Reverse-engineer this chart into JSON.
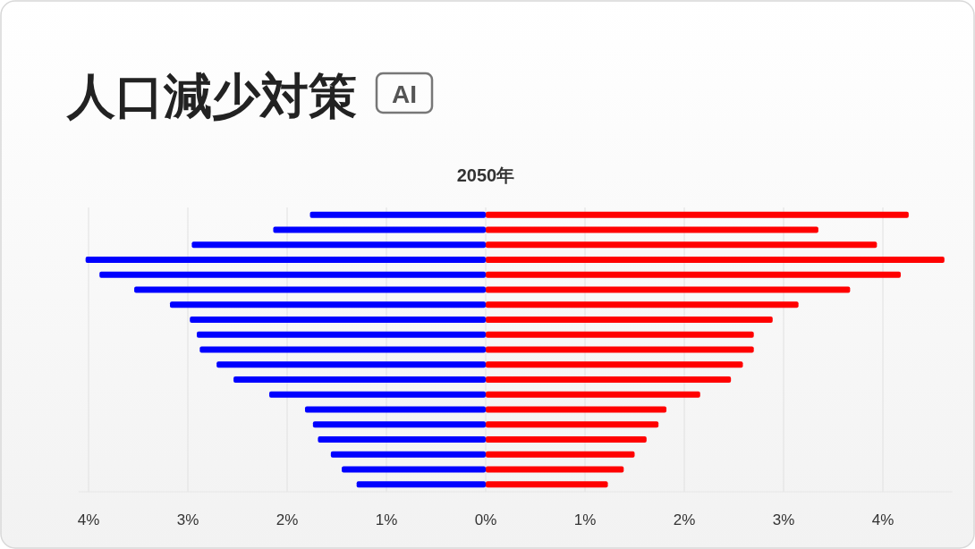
{
  "chart_data": {
    "type": "bar",
    "orientation": "horizontal",
    "stacked": true,
    "title": "人口減少対策",
    "subtitle": "2050年",
    "annotations": [
      "AI"
    ],
    "categories": [
      null,
      null,
      null,
      null,
      null,
      null,
      null,
      null,
      null,
      null,
      null,
      null,
      null,
      null,
      null,
      null,
      null,
      null,
      null
    ],
    "series": [
      {
        "color": "#0000ff",
        "values": [
          -1.77,
          -2.14,
          -2.96,
          -4.03,
          -3.89,
          -3.54,
          -3.18,
          -2.98,
          -2.91,
          -2.88,
          -2.71,
          -2.54,
          -2.18,
          -1.82,
          -1.74,
          -1.69,
          -1.56,
          -1.45,
          -1.3
        ]
      },
      {
        "color": "#ff0000",
        "values": [
          4.26,
          3.35,
          3.94,
          4.62,
          4.18,
          3.67,
          3.15,
          2.89,
          2.7,
          2.7,
          2.59,
          2.47,
          2.16,
          1.82,
          1.74,
          1.62,
          1.5,
          1.39,
          1.23
        ]
      }
    ],
    "xlim": [
      -4.1,
      4.7
    ],
    "xticks": [
      {
        "value": -4,
        "label": "4%"
      },
      {
        "value": -3,
        "label": "3%"
      },
      {
        "value": -2,
        "label": "2%"
      },
      {
        "value": -1,
        "label": "1%"
      },
      {
        "value": 0,
        "label": "0%"
      },
      {
        "value": 1,
        "label": "1%"
      },
      {
        "value": 2,
        "label": "2%"
      },
      {
        "value": 3,
        "label": "3%"
      },
      {
        "value": 4,
        "label": "4%"
      }
    ],
    "grid": "x"
  }
}
